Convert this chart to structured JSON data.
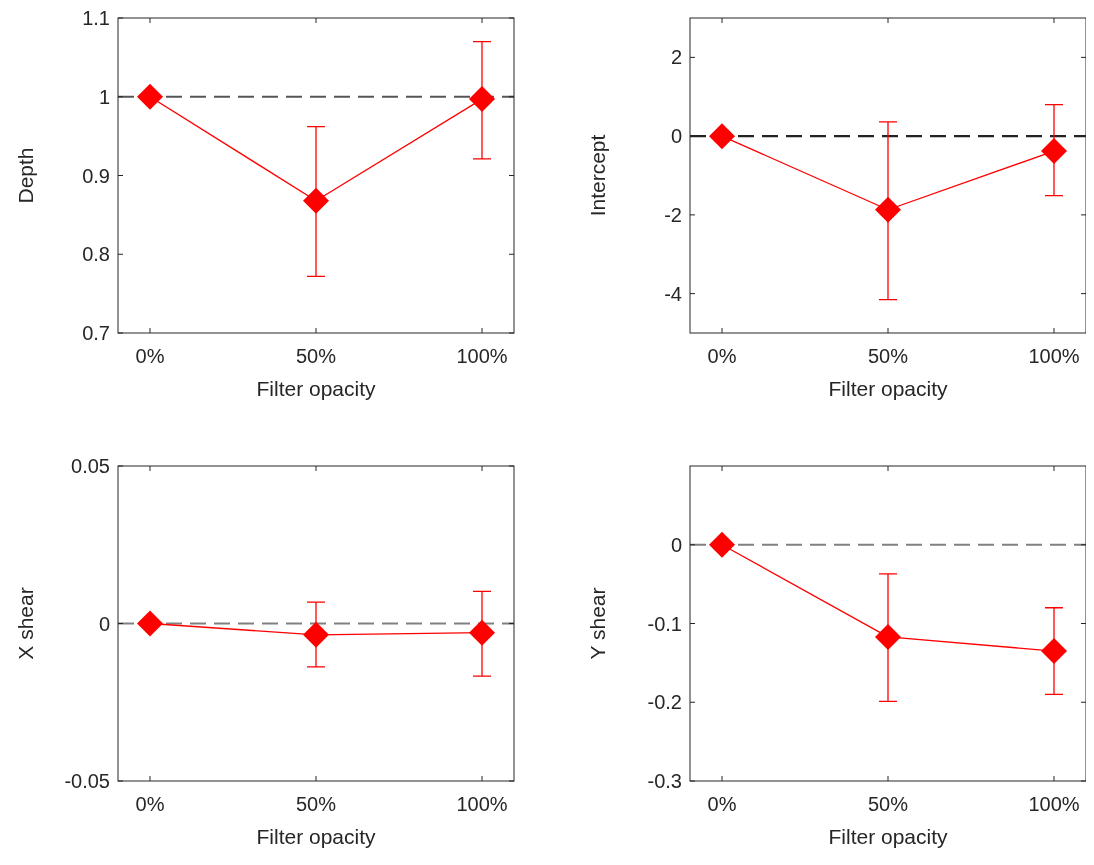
{
  "chart_data": [
    {
      "type": "line",
      "categories": [
        "0%",
        "50%",
        "100%"
      ],
      "xlabel": "Filter opacity",
      "ylabel": "Depth",
      "ylim": [
        0.7,
        1.1
      ],
      "yticks": [
        0.7,
        0.8,
        0.9,
        1,
        1.1
      ],
      "marker": "diamond",
      "series": [
        {
          "color": "#ff0000",
          "values": [
            1.0,
            0.868,
            0.997
          ],
          "errors": [
            null,
            [
              0.772,
              0.962
            ],
            [
              0.921,
              1.07
            ]
          ]
        }
      ],
      "ref_lines": [
        {
          "axis": "y",
          "value": 1,
          "color": "#555555",
          "line_style": "dashed"
        }
      ]
    },
    {
      "type": "line",
      "categories": [
        "0%",
        "50%",
        "100%"
      ],
      "xlabel": "Filter opacity",
      "ylabel": "Intercept",
      "ylim": [
        -5,
        3
      ],
      "yticks": [
        -4,
        -2,
        0,
        2
      ],
      "marker": "diamond",
      "series": [
        {
          "color": "#ff0000",
          "values": [
            0,
            -1.87,
            -0.38
          ],
          "errors": [
            null,
            [
              -4.15,
              0.36
            ],
            [
              -1.51,
              0.8
            ]
          ]
        }
      ],
      "ref_lines": [
        {
          "axis": "y",
          "value": 0,
          "color": "#222222",
          "line_style": "dashed"
        }
      ]
    },
    {
      "type": "line",
      "categories": [
        "0%",
        "50%",
        "100%"
      ],
      "xlabel": "Filter opacity",
      "ylabel": "X shear",
      "ylim": [
        -0.05,
        0.05
      ],
      "yticks": [
        -0.05,
        0,
        0.05
      ],
      "marker": "diamond",
      "series": [
        {
          "color": "#ff0000",
          "values": [
            0,
            -0.0036,
            -0.0029
          ],
          "errors": [
            null,
            [
              -0.0138,
              0.0068
            ],
            [
              -0.0167,
              0.0102
            ]
          ]
        }
      ],
      "ref_lines": [
        {
          "axis": "y",
          "value": 0,
          "color": "#808080",
          "line_style": "dashed"
        }
      ]
    },
    {
      "type": "line",
      "categories": [
        "0%",
        "50%",
        "100%"
      ],
      "xlabel": "Filter opacity",
      "ylabel": "Y shear",
      "ylim": [
        -0.3,
        0.1
      ],
      "yticks": [
        -0.3,
        -0.2,
        -0.1,
        0
      ],
      "marker": "diamond",
      "series": [
        {
          "color": "#ff0000",
          "values": [
            0,
            -0.117,
            -0.135
          ],
          "errors": [
            null,
            [
              -0.199,
              -0.037
            ],
            [
              -0.19,
              -0.08
            ]
          ]
        }
      ],
      "ref_lines": [
        {
          "axis": "y",
          "value": 0,
          "color": "#808080",
          "line_style": "dashed"
        }
      ]
    }
  ]
}
